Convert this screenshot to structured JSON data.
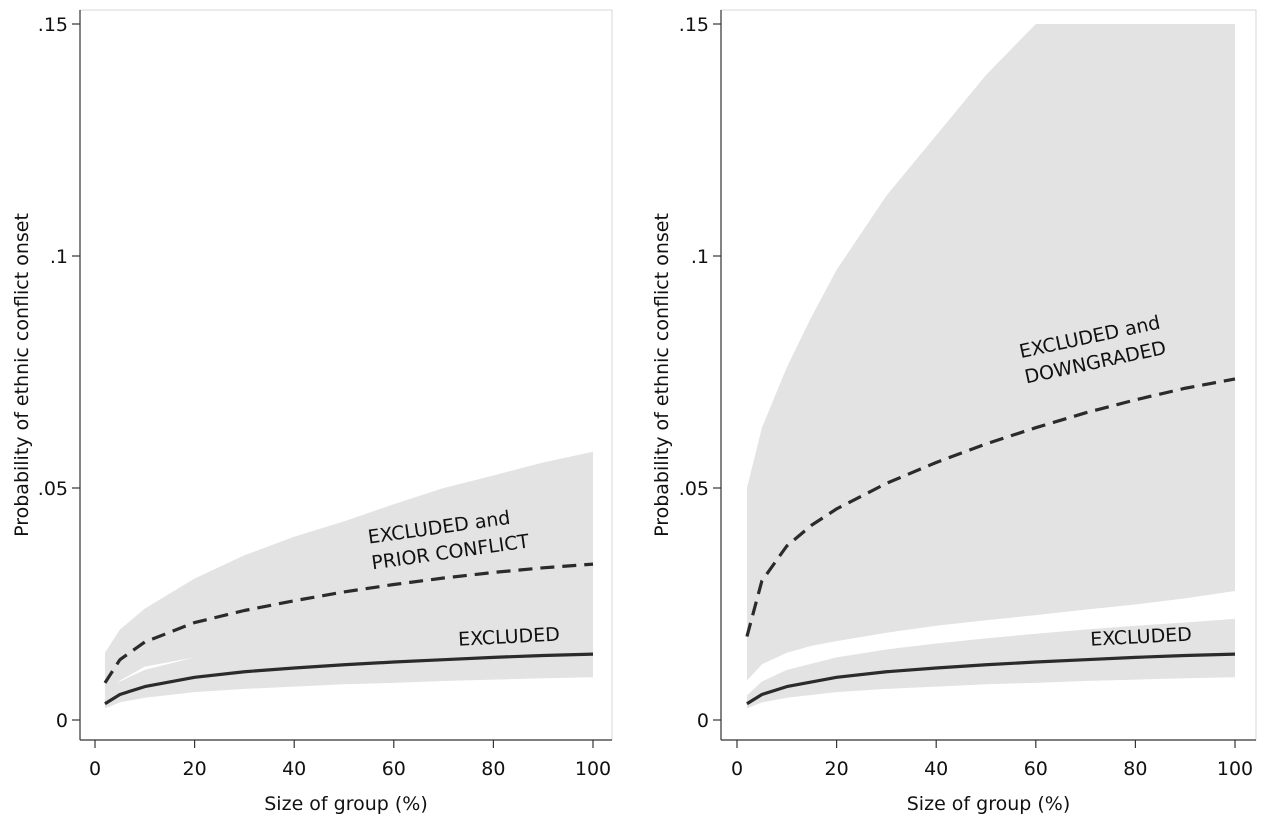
{
  "chart_data": [
    {
      "type": "line",
      "xlabel": "Size of group (%)",
      "ylabel": "Probability of ethnic conflict onset",
      "xlim": [
        0,
        100
      ],
      "ylim": [
        0,
        0.15
      ],
      "xticks": [
        0,
        20,
        40,
        60,
        80,
        100
      ],
      "xtick_labels": [
        "0",
        "20",
        "40",
        "60",
        "80",
        "100"
      ],
      "yticks": [
        0,
        0.05,
        0.1,
        0.15
      ],
      "ytick_labels": [
        "0",
        ".05",
        ".1",
        ".15"
      ],
      "grid": false,
      "series": [
        {
          "style": "solid",
          "x": [
            2,
            5,
            10,
            20,
            30,
            40,
            50,
            60,
            70,
            80,
            90,
            100
          ],
          "values": [
            0.0035,
            0.0055,
            0.0072,
            0.0092,
            0.0104,
            0.0112,
            0.0119,
            0.0125,
            0.013,
            0.0135,
            0.0139,
            0.0142
          ],
          "ci_lower": [
            0.0025,
            0.0038,
            0.0048,
            0.006,
            0.0067,
            0.0072,
            0.0077,
            0.008,
            0.0084,
            0.0087,
            0.009,
            0.0092
          ],
          "ci_upper": [
            0.0053,
            0.0083,
            0.0108,
            0.0135,
            0.0152,
            0.0165,
            0.0176,
            0.0186,
            0.0195,
            0.0203,
            0.021,
            0.0218
          ]
        },
        {
          "style": "dashed",
          "x": [
            2,
            5,
            10,
            20,
            30,
            40,
            50,
            60,
            70,
            80,
            90,
            100
          ],
          "values": [
            0.008,
            0.013,
            0.0168,
            0.021,
            0.0236,
            0.0257,
            0.0276,
            0.0292,
            0.0306,
            0.0318,
            0.0328,
            0.0336
          ],
          "ci_lower": [
            0.0042,
            0.0085,
            0.0115,
            0.0135,
            0.0148,
            0.0158,
            0.0168,
            0.0176,
            0.0183,
            0.019,
            0.0196,
            0.0201
          ],
          "ci_upper": [
            0.0145,
            0.0195,
            0.024,
            0.0305,
            0.0355,
            0.0395,
            0.0428,
            0.0465,
            0.05,
            0.0527,
            0.0555,
            0.0578
          ]
        }
      ],
      "annotations": [
        {
          "lines": [
            "EXCLUDED and",
            "PRIOR CONFLICT"
          ],
          "x": 55,
          "y": 0.038
        },
        {
          "lines": [
            "EXCLUDED"
          ],
          "x": 73,
          "y": 0.016
        }
      ]
    },
    {
      "type": "line",
      "xlabel": "Size of group (%)",
      "ylabel": "Probability of ethnic conflict onset",
      "xlim": [
        0,
        100
      ],
      "ylim": [
        0,
        0.15
      ],
      "xticks": [
        0,
        20,
        40,
        60,
        80,
        100
      ],
      "xtick_labels": [
        "0",
        "20",
        "40",
        "60",
        "80",
        "100"
      ],
      "yticks": [
        0,
        0.05,
        0.1,
        0.15
      ],
      "ytick_labels": [
        "0",
        ".05",
        ".1",
        ".15"
      ],
      "grid": false,
      "series": [
        {
          "style": "solid",
          "x": [
            2,
            5,
            10,
            20,
            30,
            40,
            50,
            60,
            70,
            80,
            90,
            100
          ],
          "values": [
            0.0035,
            0.0055,
            0.0072,
            0.0092,
            0.0104,
            0.0112,
            0.0119,
            0.0125,
            0.013,
            0.0135,
            0.0139,
            0.0142
          ],
          "ci_lower": [
            0.0025,
            0.0038,
            0.0048,
            0.006,
            0.0067,
            0.0072,
            0.0077,
            0.008,
            0.0084,
            0.0087,
            0.009,
            0.0092
          ],
          "ci_upper": [
            0.0053,
            0.0083,
            0.0108,
            0.0135,
            0.0152,
            0.0165,
            0.0176,
            0.0186,
            0.0195,
            0.0203,
            0.021,
            0.0218
          ]
        },
        {
          "style": "dashed",
          "x": [
            2,
            5,
            10,
            15,
            20,
            30,
            40,
            50,
            60,
            70,
            80,
            90,
            100
          ],
          "values": [
            0.018,
            0.03,
            0.0375,
            0.042,
            0.0455,
            0.051,
            0.0555,
            0.0595,
            0.063,
            0.0662,
            0.069,
            0.0715,
            0.0735
          ],
          "ci_lower": [
            0.0085,
            0.012,
            0.0145,
            0.016,
            0.017,
            0.0188,
            0.0203,
            0.0215,
            0.0226,
            0.0238,
            0.0249,
            0.0262,
            0.0278
          ],
          "ci_upper": [
            0.05,
            0.063,
            0.076,
            0.087,
            0.097,
            0.113,
            0.126,
            0.139,
            0.15,
            0.15,
            0.15,
            0.15,
            0.15
          ]
        }
      ],
      "annotations": [
        {
          "lines": [
            "EXCLUDED and",
            "DOWNGRADED"
          ],
          "x": 57,
          "y": 0.078
        },
        {
          "lines": [
            "EXCLUDED"
          ],
          "x": 71,
          "y": 0.016
        }
      ]
    }
  ]
}
